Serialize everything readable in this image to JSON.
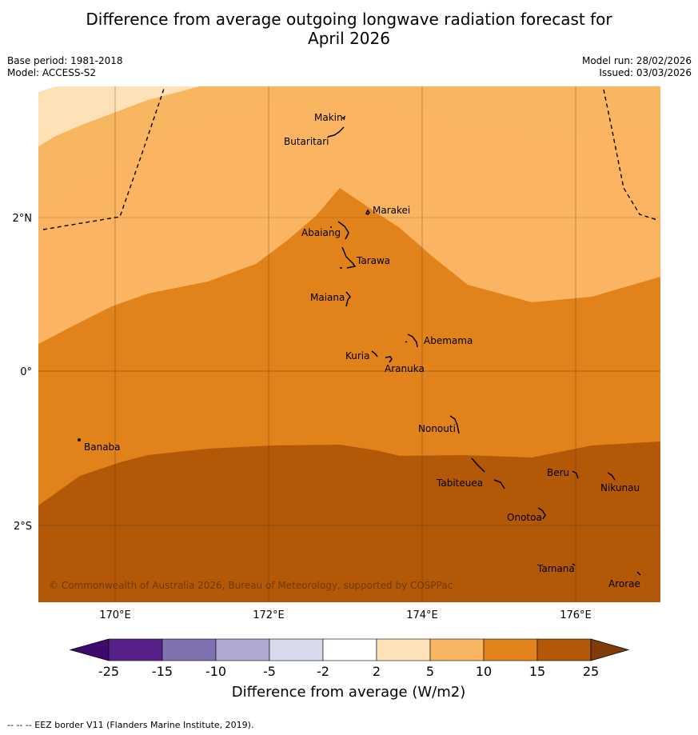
{
  "title_line1": "Difference from average outgoing longwave radiation forecast for",
  "title_line2": "April 2026",
  "base_period": "Base period: 1981-2018",
  "model": "Model: ACCESS-S2",
  "model_run": "Model run: 28/02/2026",
  "issued": "Issued: 03/03/2026",
  "copyright": "© Commonwealth of Australia 2026, Bureau of Meteorology, supported by COSPPac",
  "lat_labels": [
    "2°N",
    "0°",
    "2°S"
  ],
  "lon_labels": [
    "170°E",
    "172°E",
    "174°E",
    "176°E"
  ],
  "places": [
    "Makin",
    "Butaritari",
    "Marakei",
    "Abaiang",
    "Tarawa",
    "Maiana",
    "Abemama",
    "Kuria",
    "Aranuka",
    "Nonouti",
    "Banaba",
    "Beru",
    "Nikunau",
    "Tabiteuea",
    "Onotoa",
    "Tamana",
    "Arorae"
  ],
  "legend": {
    "ticks": [
      "-25",
      "-15",
      "-10",
      "-5",
      "-2",
      "2",
      "5",
      "10",
      "15",
      "25"
    ],
    "colors": [
      "#3f0a6e",
      "#582189",
      "#8072b0",
      "#b0aad2",
      "#d9daeb",
      "#ffffff",
      "#fee1b6",
      "#f9b660",
      "#e1821a",
      "#b35806",
      "#7f3b08"
    ],
    "label": "Difference from average (W/m2)"
  },
  "footer": "--  --  -- EEZ border V11 (Flanders Marine Institute, 2019)."
}
